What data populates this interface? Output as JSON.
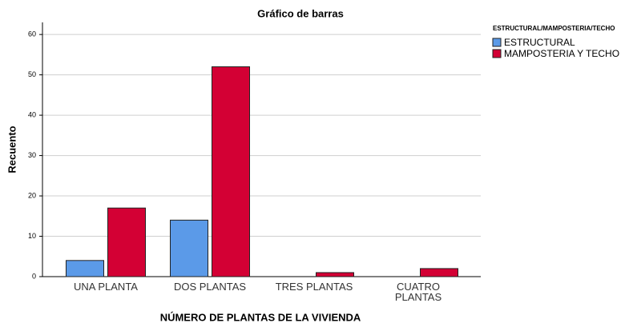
{
  "chart_data": {
    "type": "bar",
    "title": "Gráfico de barras",
    "x_label": "NÚMERO DE PLANTAS DE LA VIVIENDA",
    "y_label": "Recuento",
    "legend_title": "ESTRUCTURAL/MAMPOSTERIA/TECHO",
    "categories": [
      "UNA PLANTA",
      "DOS PLANTAS",
      "TRES PLANTAS",
      "CUATRO PLANTAS"
    ],
    "series": [
      {
        "name": "ESTRUCTURAL",
        "color": "#5b9ae8",
        "values": [
          4,
          14,
          0,
          0
        ]
      },
      {
        "name": "MAMPOSTERIA Y TECHO",
        "color": "#d30034",
        "values": [
          17,
          52,
          1,
          2
        ]
      }
    ],
    "ylim": [
      0,
      63
    ],
    "yticks": [
      0,
      10,
      20,
      30,
      40,
      50,
      60
    ],
    "grid": true
  }
}
